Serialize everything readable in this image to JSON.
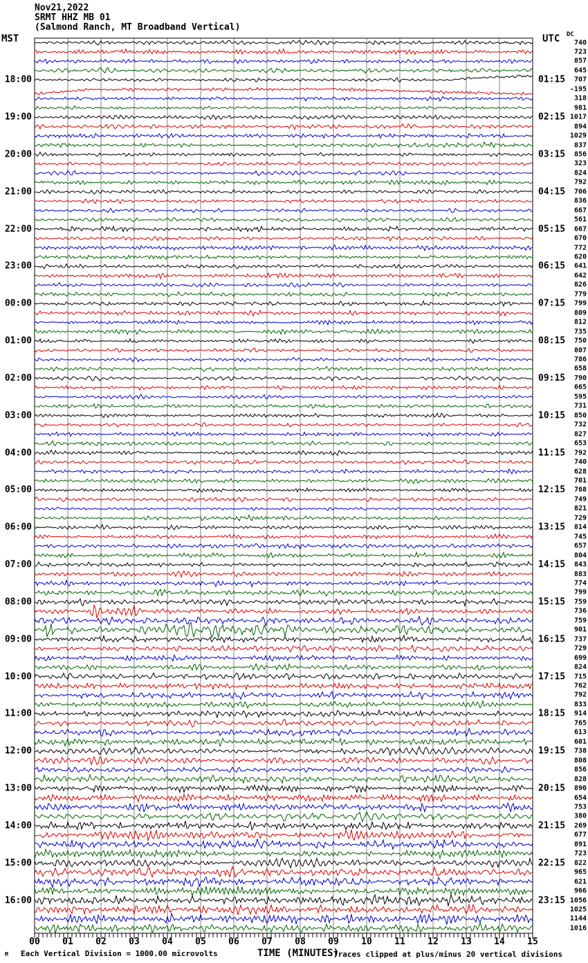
{
  "header": {
    "date": "Nov21,2022",
    "station": "SRMT HHZ MB 01",
    "description": "(Salmond Ranch, MT Broadband Vertical)"
  },
  "axes": {
    "left_label": "MST",
    "right_label": "UTC",
    "dc_label": "DC",
    "x_title": "TIME (MINUTES)",
    "x_tick_labels": [
      "00",
      "01",
      "02",
      "03",
      "04",
      "05",
      "06",
      "07",
      "08",
      "09",
      "10",
      "11",
      "12",
      "13",
      "14",
      "15"
    ]
  },
  "footer": {
    "scale_note": "Each Vertical Division = 1000.00 microvolts",
    "clip_note": "Traces clipped at plus/minus 20 vertical divisions",
    "corner_mark": "M"
  },
  "colors": {
    "background": "#ffffff",
    "text": "#000000",
    "grid": "#808080",
    "border": "#000000",
    "trace_cycle_hex": [
      "#000000",
      "#dd0000",
      "#0000cc",
      "#006400"
    ]
  },
  "chart_data": {
    "type": "line",
    "kind": "helicorder-seismogram",
    "title": "SRMT HHZ MB 01 (Salmond Ranch, MT Broadband Vertical) Nov21,2022",
    "xlabel": "TIME (MINUTES)",
    "x_range": [
      0,
      15
    ],
    "minutes_per_line": 15,
    "trace_color_cycle": [
      "black",
      "red",
      "blue",
      "green"
    ],
    "first_labeled_row": 5,
    "label_every_n_rows": 4,
    "mst_labels": [
      "18:00",
      "19:00",
      "20:00",
      "21:00",
      "22:00",
      "23:00",
      "00:00",
      "01:00",
      "02:00",
      "03:00",
      "04:00",
      "05:00",
      "06:00",
      "07:00",
      "08:00",
      "09:00",
      "10:00",
      "11:00",
      "12:00",
      "13:00",
      "14:00",
      "15:00",
      "16:00"
    ],
    "utc_labels": [
      "01:15",
      "02:15",
      "03:15",
      "04:15",
      "05:15",
      "06:15",
      "07:15",
      "08:15",
      "09:15",
      "10:15",
      "11:15",
      "12:15",
      "13:15",
      "14:15",
      "15:15",
      "16:15",
      "17:15",
      "18:15",
      "19:15",
      "20:15",
      "21:15",
      "22:15",
      "23:15"
    ],
    "row_format": [
      "dc_offset",
      "amplitude_px"
    ],
    "rows": [
      [
        740,
        2.2
      ],
      [
        723,
        2.2
      ],
      [
        857,
        2.0
      ],
      [
        645,
        2.2
      ],
      [
        707,
        1.6
      ],
      [
        -195,
        1.6
      ],
      [
        318,
        1.8
      ],
      [
        981,
        1.8
      ],
      [
        1017,
        2.0
      ],
      [
        894,
        2.2
      ],
      [
        1029,
        2.2
      ],
      [
        837,
        2.2
      ],
      [
        856,
        1.8
      ],
      [
        323,
        1.8
      ],
      [
        824,
        2.0
      ],
      [
        792,
        2.2
      ],
      [
        706,
        2.0
      ],
      [
        836,
        1.8
      ],
      [
        667,
        1.8
      ],
      [
        561,
        2.0
      ],
      [
        667,
        2.2
      ],
      [
        670,
        2.0
      ],
      [
        772,
        2.0
      ],
      [
        620,
        2.0
      ],
      [
        641,
        2.0
      ],
      [
        642,
        2.2
      ],
      [
        826,
        2.0
      ],
      [
        779,
        2.0
      ],
      [
        799,
        2.0
      ],
      [
        809,
        2.2
      ],
      [
        812,
        2.0
      ],
      [
        735,
        2.2
      ],
      [
        750,
        1.8
      ],
      [
        807,
        1.8
      ],
      [
        786,
        1.8
      ],
      [
        658,
        1.8
      ],
      [
        790,
        2.0
      ],
      [
        665,
        1.8
      ],
      [
        595,
        1.8
      ],
      [
        731,
        2.0
      ],
      [
        850,
        2.0
      ],
      [
        732,
        1.8
      ],
      [
        827,
        2.0
      ],
      [
        653,
        2.2
      ],
      [
        792,
        2.0
      ],
      [
        740,
        1.8
      ],
      [
        628,
        1.8
      ],
      [
        701,
        2.0
      ],
      [
        768,
        1.8
      ],
      [
        749,
        2.0
      ],
      [
        821,
        2.0
      ],
      [
        729,
        2.0
      ],
      [
        814,
        2.0
      ],
      [
        745,
        2.0
      ],
      [
        657,
        2.2
      ],
      [
        804,
        2.2
      ],
      [
        843,
        2.2
      ],
      [
        883,
        2.4
      ],
      [
        774,
        2.4
      ],
      [
        799,
        2.6
      ],
      [
        759,
        2.8
      ],
      [
        736,
        2.6
      ],
      [
        759,
        3.4
      ],
      [
        901,
        4.0
      ],
      [
        737,
        3.0
      ],
      [
        729,
        2.6
      ],
      [
        699,
        2.6
      ],
      [
        824,
        2.8
      ],
      [
        715,
        2.6
      ],
      [
        762,
        3.0
      ],
      [
        792,
        3.0
      ],
      [
        833,
        3.0
      ],
      [
        914,
        3.0
      ],
      [
        765,
        3.0
      ],
      [
        613,
        3.0
      ],
      [
        601,
        3.2
      ],
      [
        738,
        3.2
      ],
      [
        808,
        3.2
      ],
      [
        856,
        3.4
      ],
      [
        828,
        3.4
      ],
      [
        890,
        3.4
      ],
      [
        654,
        3.6
      ],
      [
        753,
        3.6
      ],
      [
        380,
        3.8
      ],
      [
        269,
        3.8
      ],
      [
        677,
        4.0
      ],
      [
        891,
        4.0
      ],
      [
        723,
        4.0
      ],
      [
        822,
        4.0
      ],
      [
        965,
        4.2
      ],
      [
        621,
        4.2
      ],
      [
        966,
        4.2
      ],
      [
        1056,
        4.4
      ],
      [
        1025,
        4.4
      ],
      [
        1144,
        4.4
      ],
      [
        1016,
        4.4
      ]
    ],
    "events": {
      "5": {
        "drift": [
          [
            0,
            0
          ],
          [
            12.6,
            0
          ],
          [
            12.9,
            -2
          ],
          [
            15,
            -6
          ]
        ]
      },
      "6": {
        "drift": [
          [
            0,
            7
          ],
          [
            1.6,
            0.5
          ],
          [
            9,
            0
          ],
          [
            15,
            7
          ]
        ]
      },
      "62": {
        "bursts": [
          [
            1.7,
            3.3,
            2.6
          ]
        ]
      },
      "64": {
        "bursts": [
          [
            0.25,
            0.6,
            3.2
          ],
          [
            3.5,
            8,
            1.7
          ]
        ]
      }
    }
  }
}
